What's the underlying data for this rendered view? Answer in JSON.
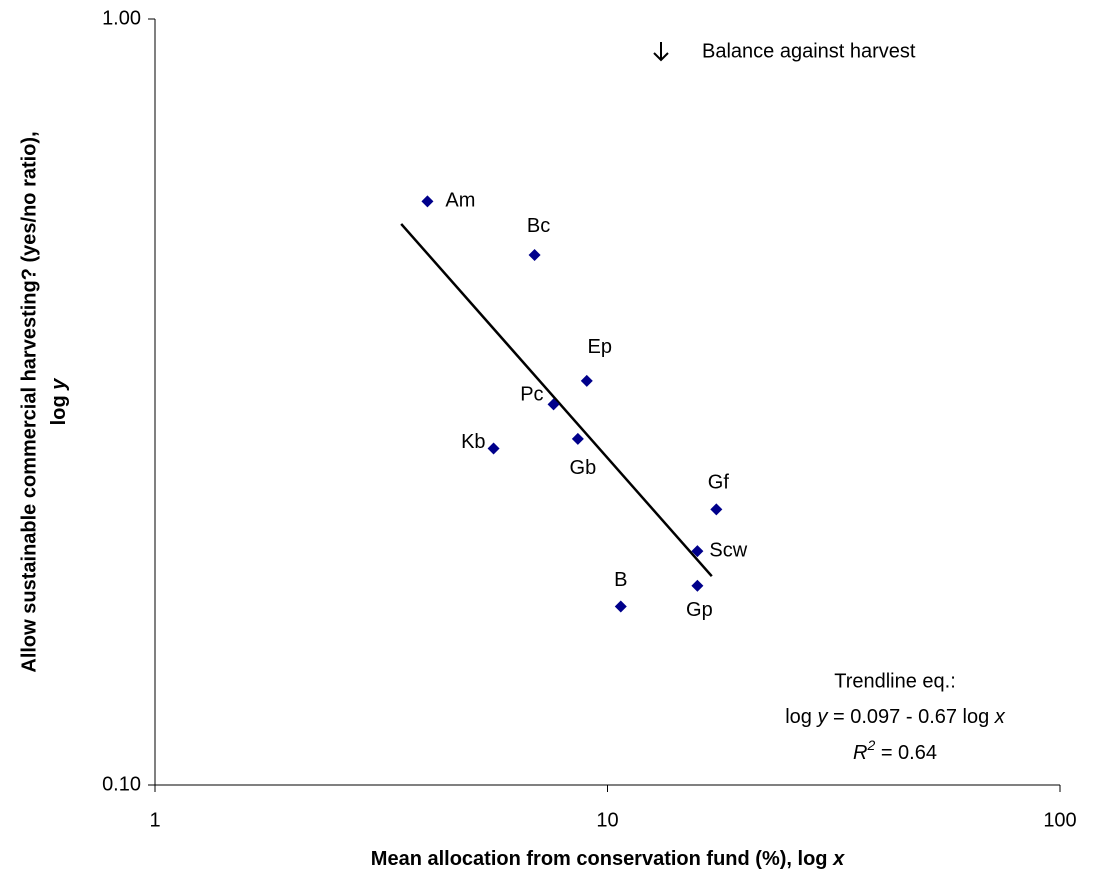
{
  "chart_data": {
    "type": "scatter",
    "x_label": [
      "Mean allocation from conservation fund (%), log ",
      "x"
    ],
    "y_label": [
      "Allow sustainable commercial harvesting? (yes/no ratio),",
      "log ",
      "y"
    ],
    "note": "Balance against harvest",
    "xscale": "log",
    "yscale": "log",
    "xlim": [
      1,
      100
    ],
    "ylim": [
      0.1,
      1
    ],
    "xticks": [
      1,
      10,
      100
    ],
    "yticks": [
      {
        "value": 0.1,
        "label": "0.10"
      },
      {
        "value": 1,
        "label": "1.00"
      }
    ],
    "color": "#00008b",
    "labels": [
      "Am",
      "Bc",
      "Ep",
      "Pc",
      "Gb",
      "Kb",
      "Gf",
      "Scw",
      "Gp",
      "B"
    ],
    "x": [
      4.0,
      6.9,
      9.0,
      7.6,
      8.6,
      5.6,
      17.4,
      15.8,
      15.8,
      10.7
    ],
    "values": [
      0.578,
      0.492,
      0.337,
      0.314,
      0.283,
      0.275,
      0.229,
      0.202,
      0.182,
      0.171
    ],
    "trendline": {
      "intercept": 0.097,
      "slope": -0.67,
      "x_range": [
        3.5,
        17
      ]
    },
    "trendline_label": {
      "title": "Trendline eq.:",
      "equation": [
        "log ",
        "y",
        " = 0.097 - 0.67 log ",
        "x"
      ],
      "r2": [
        "R",
        "2",
        " = 0.64"
      ]
    }
  }
}
